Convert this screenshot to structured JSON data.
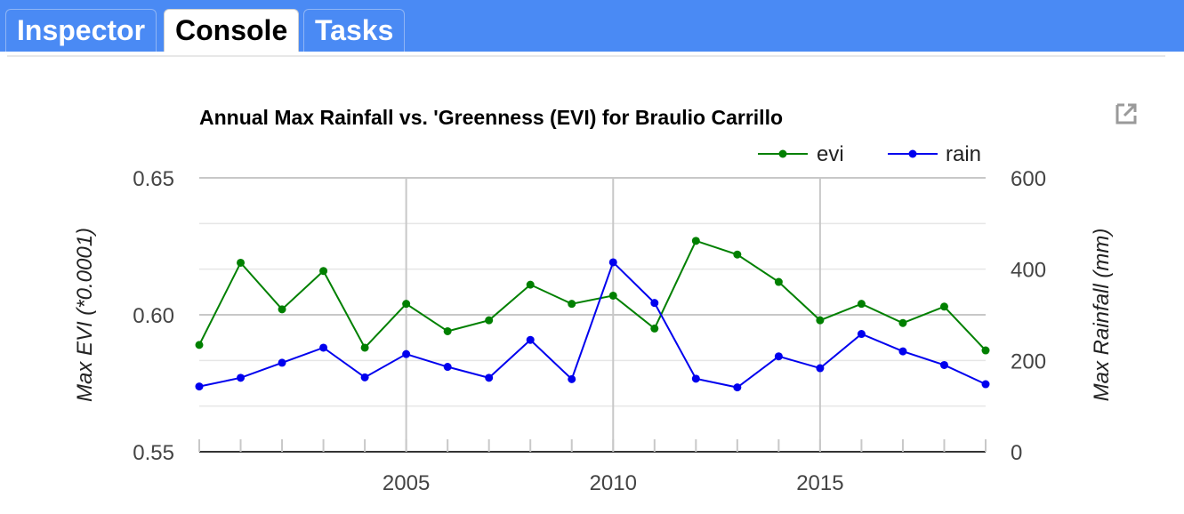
{
  "tabs": [
    {
      "label": "Inspector",
      "active": false
    },
    {
      "label": "Console",
      "active": true
    },
    {
      "label": "Tasks",
      "active": false
    }
  ],
  "popout_icon": "open-in-new-window-icon",
  "chart_data": {
    "type": "line",
    "title": "Annual Max Rainfall vs. 'Greenness (EVI) for Braulio Carrillo",
    "x": [
      2000,
      2001,
      2002,
      2003,
      2004,
      2005,
      2006,
      2007,
      2008,
      2009,
      2010,
      2011,
      2012,
      2013,
      2014,
      2015,
      2016,
      2017,
      2018,
      2019
    ],
    "x_ticks": [
      2005,
      2010,
      2015
    ],
    "xlim": [
      2000,
      2019
    ],
    "series": [
      {
        "name": "evi",
        "axis": "left",
        "color": "#008000",
        "values": [
          0.589,
          0.619,
          0.602,
          0.616,
          0.588,
          0.604,
          0.594,
          0.598,
          0.611,
          0.604,
          0.607,
          0.595,
          0.627,
          0.622,
          0.612,
          0.598,
          0.604,
          0.597,
          0.603,
          0.587
        ]
      },
      {
        "name": "rain",
        "axis": "right",
        "color": "#0000ee",
        "values": [
          143,
          162,
          195,
          228,
          163,
          214,
          186,
          162,
          245,
          159,
          415,
          326,
          160,
          141,
          209,
          183,
          258,
          220,
          190,
          148
        ]
      }
    ],
    "y_left": {
      "label": "Max EVI (*0.0001)",
      "lim": [
        0.55,
        0.65
      ],
      "ticks": [
        "0.55",
        "0.60",
        "0.65"
      ],
      "tick_values": [
        0.55,
        0.6,
        0.65
      ]
    },
    "y_right": {
      "label": "Max Rainfall (mm)",
      "lim": [
        0,
        600
      ],
      "ticks": [
        "0",
        "200",
        "400",
        "600"
      ],
      "tick_values": [
        0,
        200,
        400,
        600
      ]
    },
    "legend": "top-right",
    "grid": true
  }
}
